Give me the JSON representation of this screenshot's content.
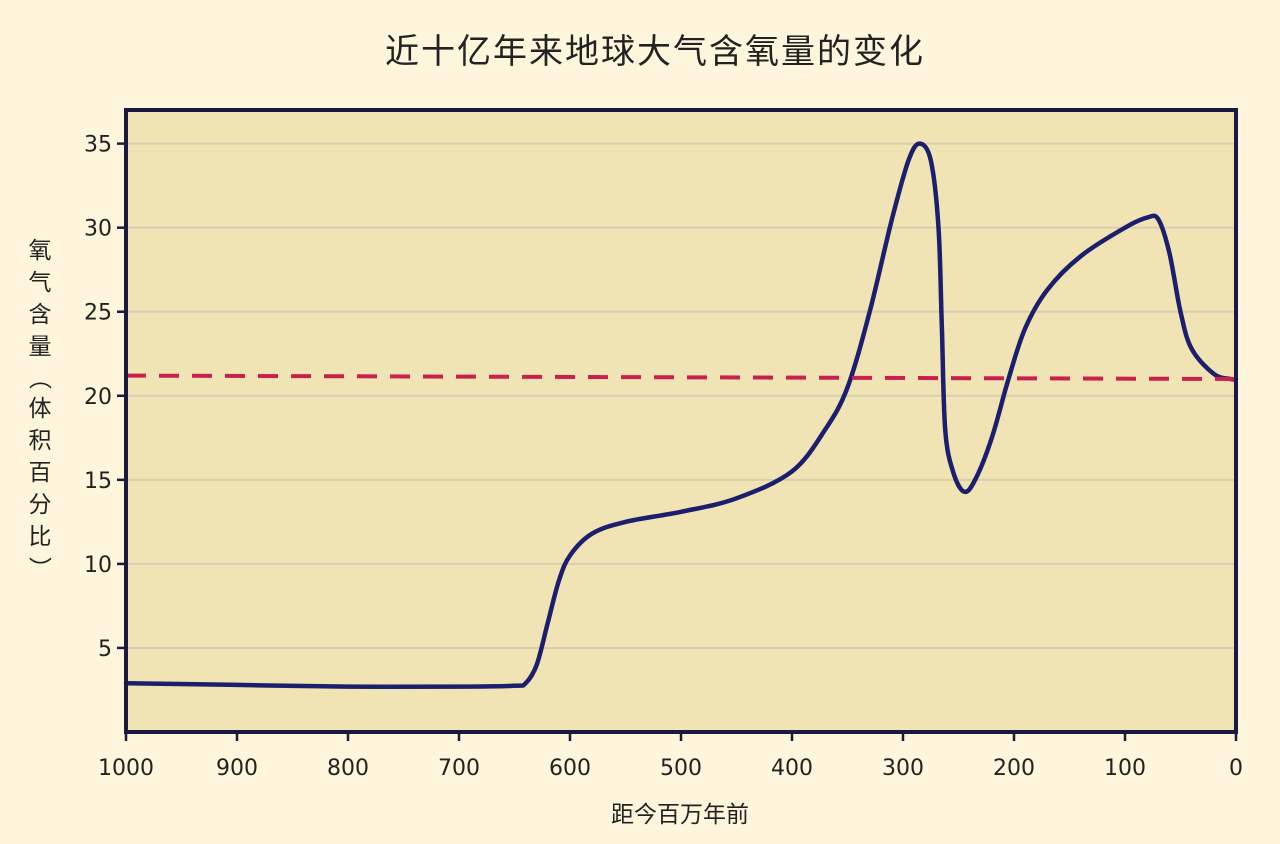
{
  "chart_data": {
    "type": "line",
    "title": "近十亿年来地球大气含氧量的变化",
    "xlabel": "距今百万年前",
    "ylabel": "氧气含量（体积百分比）",
    "xlim": [
      1000,
      0
    ],
    "x_reversed": true,
    "ylim": [
      0,
      37
    ],
    "x_ticks": [
      1000,
      900,
      800,
      700,
      600,
      500,
      400,
      300,
      200,
      100,
      0
    ],
    "y_ticks": [
      5,
      10,
      15,
      20,
      25,
      30,
      35
    ],
    "grid": "horizontal",
    "series": [
      {
        "color": "#1c1f6e",
        "style": "solid",
        "points": [
          [
            1000,
            2.9
          ],
          [
            900,
            2.8
          ],
          [
            800,
            2.7
          ],
          [
            700,
            2.7
          ],
          [
            650,
            2.75
          ],
          [
            640,
            2.9
          ],
          [
            630,
            4.0
          ],
          [
            620,
            6.5
          ],
          [
            610,
            9.0
          ],
          [
            600,
            10.5
          ],
          [
            580,
            11.8
          ],
          [
            550,
            12.5
          ],
          [
            500,
            13.1
          ],
          [
            450,
            13.9
          ],
          [
            400,
            15.5
          ],
          [
            370,
            18.0
          ],
          [
            350,
            20.5
          ],
          [
            330,
            25.0
          ],
          [
            310,
            30.5
          ],
          [
            295,
            34.0
          ],
          [
            285,
            35.0
          ],
          [
            275,
            34.0
          ],
          [
            268,
            30.0
          ],
          [
            265,
            24.0
          ],
          [
            262,
            18.0
          ],
          [
            255,
            15.5
          ],
          [
            245,
            14.3
          ],
          [
            235,
            15.0
          ],
          [
            220,
            17.5
          ],
          [
            205,
            21.0
          ],
          [
            190,
            24.0
          ],
          [
            170,
            26.3
          ],
          [
            140,
            28.3
          ],
          [
            100,
            30.0
          ],
          [
            80,
            30.6
          ],
          [
            70,
            30.5
          ],
          [
            60,
            28.5
          ],
          [
            50,
            25.0
          ],
          [
            40,
            22.8
          ],
          [
            20,
            21.3
          ],
          [
            5,
            21.0
          ],
          [
            0,
            21.0
          ]
        ]
      },
      {
        "color": "#c8204f",
        "style": "dashed",
        "points": [
          [
            1000,
            21.2
          ],
          [
            0,
            21.0
          ]
        ]
      }
    ]
  }
}
